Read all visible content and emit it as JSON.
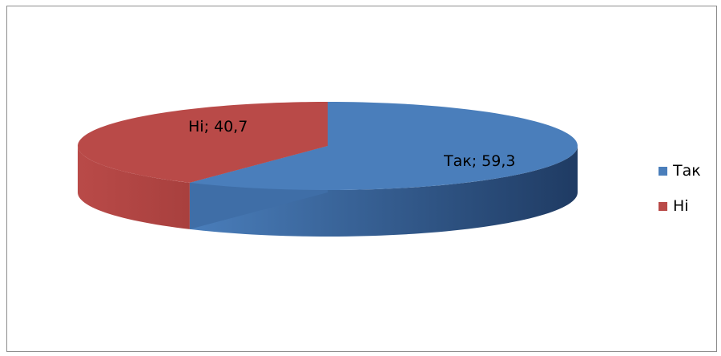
{
  "chart_data": {
    "type": "pie",
    "style": "3d",
    "start_angle_deg": 90,
    "direction": "clockwise",
    "legend_position": "right",
    "slices": [
      {
        "name": "Так",
        "value": 59.3,
        "label": "Так; 59,3",
        "color": "#4a7ebb",
        "dark": "#1f3b63"
      },
      {
        "name": "Ні",
        "value": 40.7,
        "label": "Ні; 40,7",
        "color": "#b94a48",
        "dark": "#8a3331"
      }
    ]
  }
}
